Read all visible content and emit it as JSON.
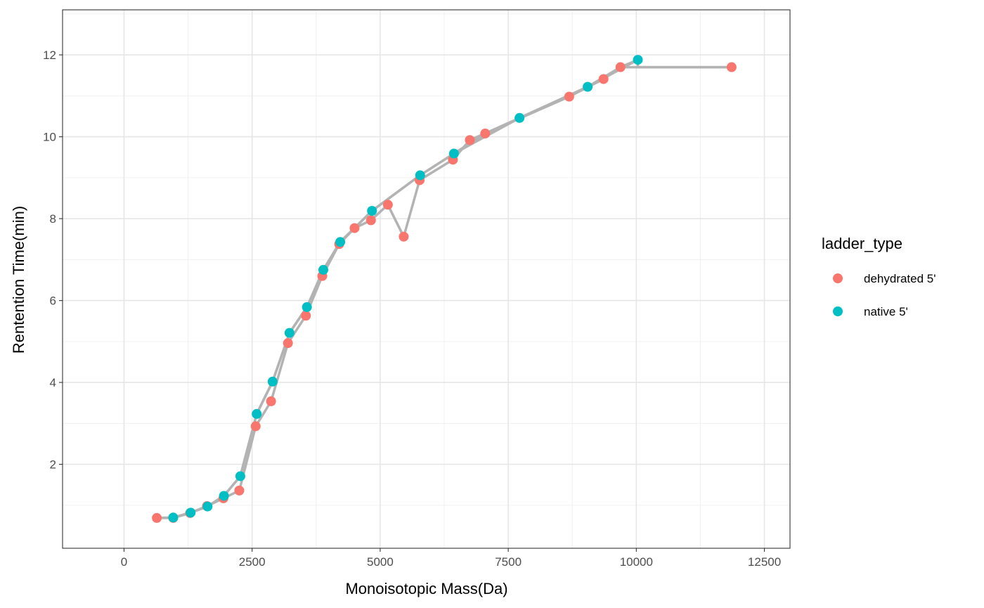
{
  "chart_data": {
    "type": "line",
    "xlabel": "Monoisotopic Mass(Da)",
    "ylabel": "Rentention Time(min)",
    "xlim": [
      -1200,
      13000
    ],
    "ylim": [
      -0.05,
      13.1
    ],
    "x_ticks": [
      0,
      2500,
      5000,
      7500,
      10000,
      12500
    ],
    "x_tick_labels": [
      "0",
      "2500",
      "5000",
      "7500",
      "10000",
      "12500"
    ],
    "y_ticks": [
      2,
      4,
      6,
      8,
      10,
      12
    ],
    "y_tick_labels": [
      "2",
      "4",
      "6",
      "8",
      "10",
      "12"
    ],
    "grid": true,
    "theme": "bw",
    "line_color": "#b3b3b3",
    "legend": {
      "title": "ladder_type",
      "position": "right",
      "entries": [
        {
          "label": "dehydrated 5'",
          "color": "#F8766D"
        },
        {
          "label": "native 5'",
          "color": "#00BFC4"
        }
      ]
    },
    "series": [
      {
        "name": "dehydrated 5'",
        "color": "#F8766D",
        "points": [
          {
            "x": 640,
            "y": 0.69
          },
          {
            "x": 960,
            "y": 0.69
          },
          {
            "x": 1290,
            "y": 0.81
          },
          {
            "x": 1620,
            "y": 0.98
          },
          {
            "x": 1940,
            "y": 1.17
          },
          {
            "x": 2250,
            "y": 1.36
          },
          {
            "x": 2570,
            "y": 2.93
          },
          {
            "x": 2870,
            "y": 3.54
          },
          {
            "x": 3200,
            "y": 4.96
          },
          {
            "x": 3550,
            "y": 5.63
          },
          {
            "x": 3870,
            "y": 6.6
          },
          {
            "x": 4200,
            "y": 7.38
          },
          {
            "x": 4500,
            "y": 7.77
          },
          {
            "x": 4820,
            "y": 7.96
          },
          {
            "x": 5150,
            "y": 8.34
          },
          {
            "x": 5460,
            "y": 7.56
          },
          {
            "x": 5770,
            "y": 8.94
          },
          {
            "x": 6420,
            "y": 9.44
          },
          {
            "x": 6750,
            "y": 9.92
          },
          {
            "x": 7050,
            "y": 10.08
          },
          {
            "x": 8690,
            "y": 10.98
          },
          {
            "x": 9360,
            "y": 11.41
          },
          {
            "x": 9690,
            "y": 11.7
          },
          {
            "x": 11860,
            "y": 11.7
          }
        ]
      },
      {
        "name": "native 5'",
        "color": "#00BFC4",
        "points": [
          {
            "x": 960,
            "y": 0.7
          },
          {
            "x": 1300,
            "y": 0.82
          },
          {
            "x": 1630,
            "y": 0.97
          },
          {
            "x": 1950,
            "y": 1.23
          },
          {
            "x": 2270,
            "y": 1.71
          },
          {
            "x": 2590,
            "y": 3.23
          },
          {
            "x": 2900,
            "y": 4.02
          },
          {
            "x": 3230,
            "y": 5.21
          },
          {
            "x": 3570,
            "y": 5.84
          },
          {
            "x": 3890,
            "y": 6.75
          },
          {
            "x": 4220,
            "y": 7.43
          },
          {
            "x": 4840,
            "y": 8.19
          },
          {
            "x": 5780,
            "y": 9.06
          },
          {
            "x": 6440,
            "y": 9.59
          },
          {
            "x": 7720,
            "y": 10.46
          },
          {
            "x": 9050,
            "y": 11.22
          },
          {
            "x": 10030,
            "y": 11.88
          }
        ]
      }
    ],
    "connector_lines": [
      [
        [
          640,
          0.69
        ],
        [
          960,
          0.69
        ],
        [
          1290,
          0.81
        ],
        [
          1620,
          0.98
        ],
        [
          1940,
          1.17
        ],
        [
          2250,
          1.36
        ],
        [
          2570,
          2.93
        ],
        [
          2870,
          3.54
        ],
        [
          3200,
          4.96
        ],
        [
          3550,
          5.63
        ],
        [
          3870,
          6.6
        ],
        [
          4200,
          7.38
        ],
        [
          4500,
          7.77
        ],
        [
          4820,
          7.96
        ],
        [
          5150,
          8.34
        ],
        [
          5460,
          7.56
        ],
        [
          5770,
          8.94
        ],
        [
          6420,
          9.44
        ],
        [
          6750,
          9.92
        ],
        [
          7050,
          10.08
        ],
        [
          8690,
          10.98
        ],
        [
          9360,
          11.41
        ],
        [
          9690,
          11.7
        ],
        [
          11860,
          11.7
        ]
      ],
      [
        [
          960,
          0.7
        ],
        [
          1300,
          0.82
        ],
        [
          1630,
          0.97
        ],
        [
          1950,
          1.23
        ],
        [
          2270,
          1.71
        ],
        [
          2590,
          3.23
        ],
        [
          2900,
          4.02
        ],
        [
          3230,
          5.21
        ],
        [
          3570,
          5.84
        ],
        [
          3890,
          6.75
        ],
        [
          4220,
          7.43
        ],
        [
          4840,
          8.19
        ],
        [
          5780,
          9.06
        ],
        [
          6440,
          9.59
        ],
        [
          7720,
          10.46
        ],
        [
          9050,
          11.22
        ],
        [
          10030,
          11.88
        ]
      ],
      [
        [
          640,
          0.69
        ],
        [
          960,
          0.7
        ],
        [
          1300,
          0.82
        ],
        [
          1630,
          0.97
        ],
        [
          1950,
          1.23
        ],
        [
          2270,
          1.71
        ],
        [
          2590,
          3.23
        ],
        [
          2900,
          4.02
        ],
        [
          3230,
          5.21
        ],
        [
          3570,
          5.84
        ],
        [
          3890,
          6.75
        ],
        [
          4220,
          7.43
        ],
        [
          4840,
          8.19
        ],
        [
          5780,
          9.06
        ],
        [
          6440,
          9.59
        ],
        [
          7050,
          10.08
        ],
        [
          7720,
          10.46
        ],
        [
          9050,
          11.22
        ],
        [
          9690,
          11.7
        ],
        [
          10030,
          11.88
        ],
        [
          10030,
          11.7
        ],
        [
          11860,
          11.7
        ]
      ]
    ]
  }
}
